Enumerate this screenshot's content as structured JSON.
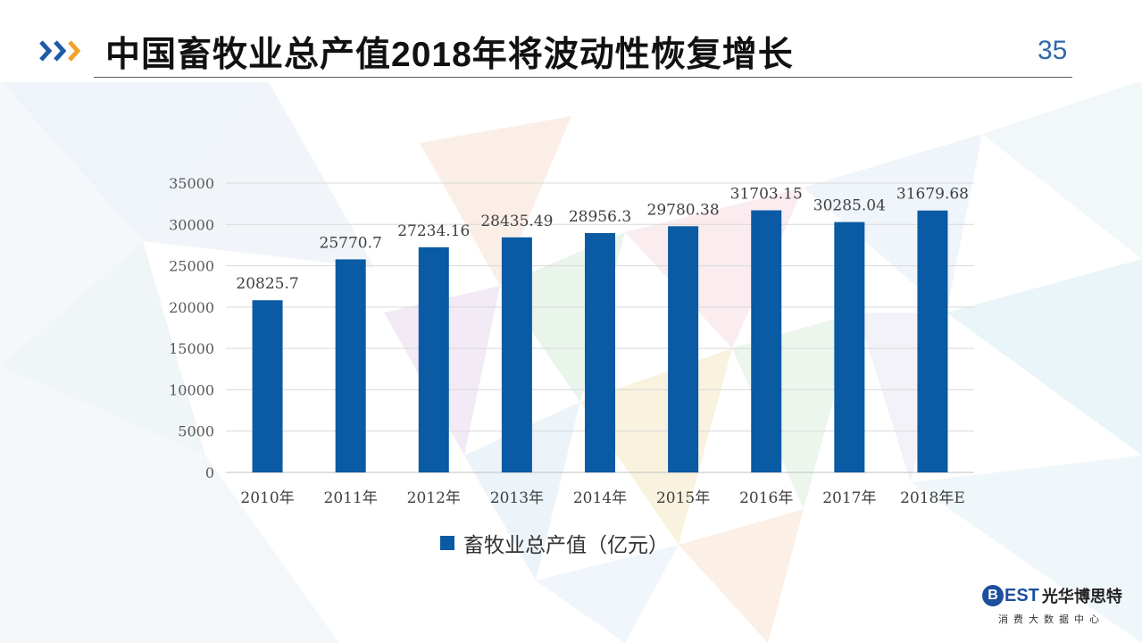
{
  "header": {
    "title": "中国畜牧业总产值2018年将波动性恢复增长",
    "page_number": "35"
  },
  "colors": {
    "bar": "#0a5aa4",
    "accent_blue": "#1d5ca7",
    "accent_orange": "#f0a22a"
  },
  "chart_data": {
    "type": "bar",
    "categories": [
      "2010年",
      "2011年",
      "2012年",
      "2013年",
      "2014年",
      "2015年",
      "2016年",
      "2017年",
      "2018年E"
    ],
    "series": [
      {
        "name": "畜牧业总产值（亿元）",
        "values": [
          20825.7,
          25770.7,
          27234.16,
          28435.49,
          28956.3,
          29780.38,
          31703.15,
          30285.04,
          31679.68
        ]
      }
    ],
    "value_labels": [
      "20825.7",
      "25770.7",
      "27234.16",
      "28435.49",
      "28956.3",
      "29780.38",
      "31703.15",
      "30285.04",
      "31679.68"
    ],
    "y_ticks": [
      "0",
      "5000",
      "10000",
      "15000",
      "20000",
      "25000",
      "30000",
      "35000"
    ],
    "ylim": [
      0,
      35000
    ],
    "grid": true,
    "legend_position": "bottom"
  },
  "logo": {
    "letter": "B",
    "est": "EST",
    "name_cn": "光华博思特",
    "tagline": "消费大数据中心"
  }
}
